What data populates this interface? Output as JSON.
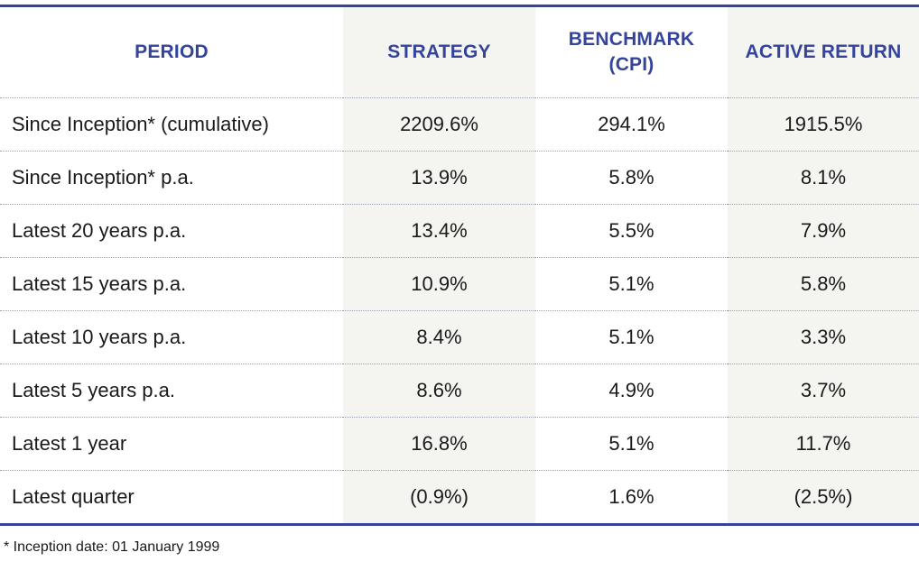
{
  "table": {
    "headers": {
      "period": "PERIOD",
      "strategy": "STRATEGY",
      "benchmark_line1": "BENCHMARK",
      "benchmark_line2": "(CPI)",
      "active": "ACTIVE RETURN"
    },
    "rows": [
      {
        "period": "Since Inception* (cumulative)",
        "strategy": "2209.6%",
        "benchmark": "294.1%",
        "active": "1915.5%"
      },
      {
        "period": "Since Inception* p.a.",
        "strategy": "13.9%",
        "benchmark": "5.8%",
        "active": "8.1%"
      },
      {
        "period": "Latest 20 years p.a.",
        "strategy": "13.4%",
        "benchmark": "5.5%",
        "active": "7.9%"
      },
      {
        "period": "Latest 15 years p.a.",
        "strategy": "10.9%",
        "benchmark": "5.1%",
        "active": "5.8%"
      },
      {
        "period": "Latest 10 years p.a.",
        "strategy": "8.4%",
        "benchmark": "5.1%",
        "active": "3.3%"
      },
      {
        "period": "Latest 5 years p.a.",
        "strategy": "8.6%",
        "benchmark": "4.9%",
        "active": "3.7%"
      },
      {
        "period": "Latest 1 year",
        "strategy": "16.8%",
        "benchmark": "5.1%",
        "active": "11.7%"
      },
      {
        "period": "Latest quarter",
        "strategy": "(0.9%)",
        "benchmark": "1.6%",
        "active": "(2.5%)"
      }
    ]
  },
  "footnote": "* Inception date: 01 January 1999",
  "colors": {
    "accent": "#34449a",
    "shade": "#f4f4f1",
    "text": "#1a1a1a"
  }
}
